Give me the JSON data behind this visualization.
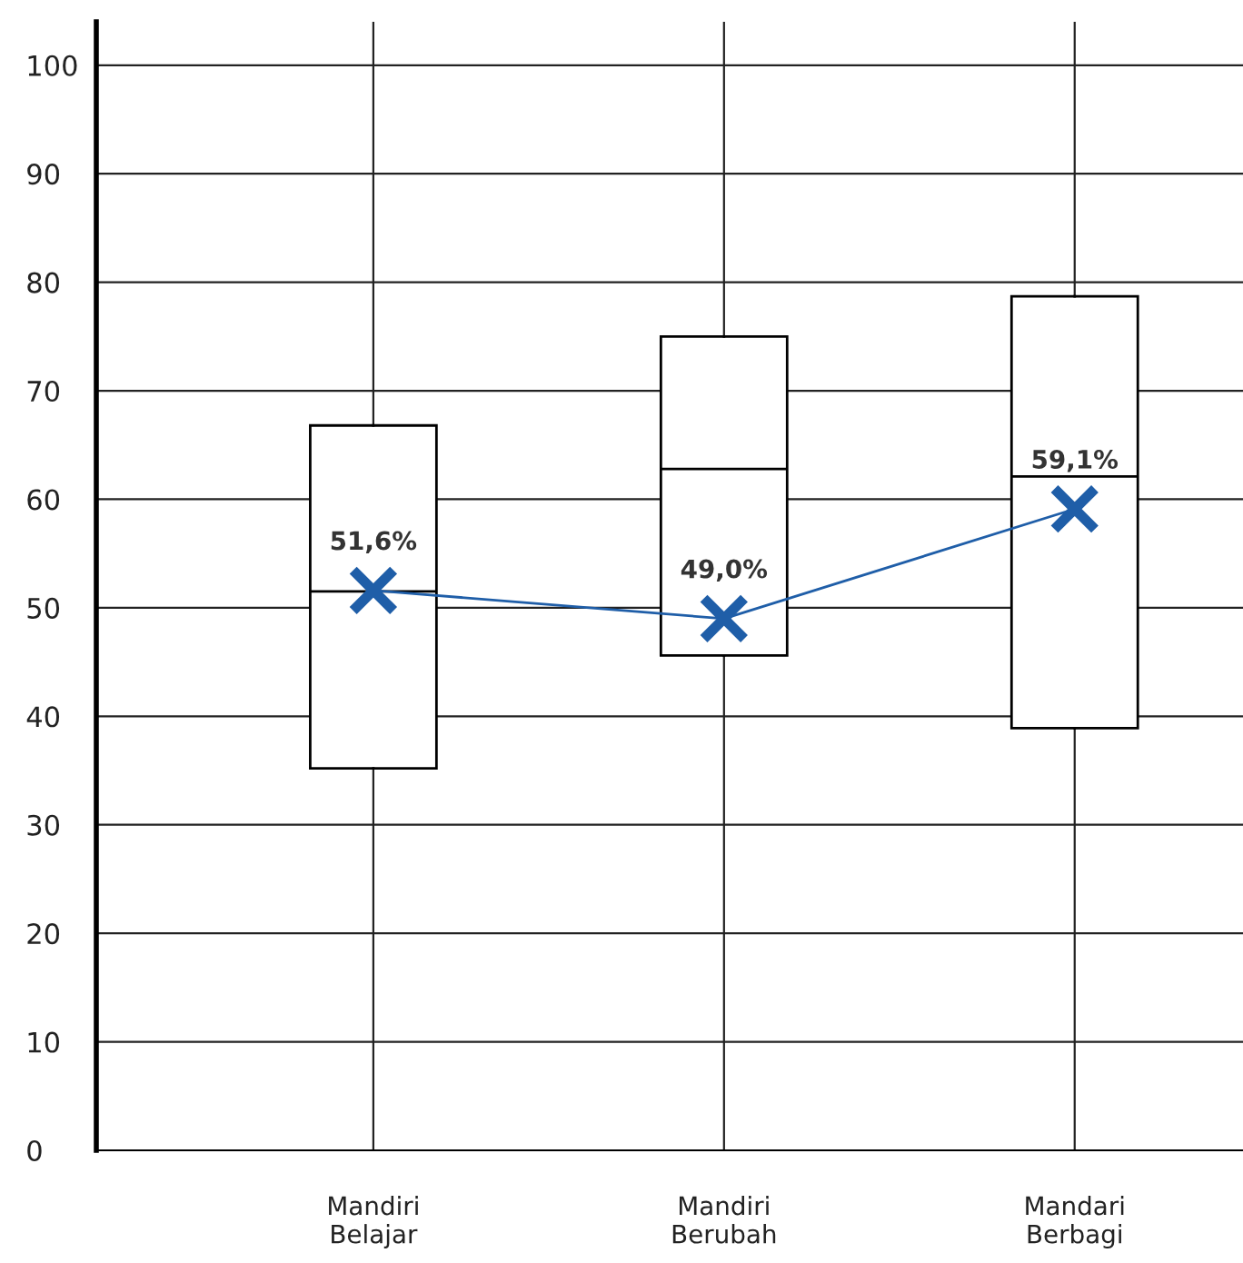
{
  "chart_data": {
    "type": "box",
    "categories": [
      "Mandiri\nBelajar",
      "Mandiri\nBerubah",
      "Mandari\nBerbagi"
    ],
    "boxes": [
      {
        "low": 35.2,
        "q1": 35.2,
        "median": 51.5,
        "q3": 66.8,
        "high": 66.8
      },
      {
        "low": 45.6,
        "q1": 45.6,
        "median": 62.8,
        "q3": 75.0,
        "high": 75.0
      },
      {
        "low": 38.9,
        "q1": 38.9,
        "median": 62.1,
        "q3": 78.7,
        "high": 78.7
      }
    ],
    "series": [
      {
        "type": "line",
        "color": "#1f5ea8",
        "values": [
          51.6,
          49.0,
          59.1
        ],
        "value_labels": [
          "51,6%",
          "49,0%",
          "59,1%"
        ],
        "marker": "cross"
      }
    ],
    "ylim": [
      0,
      104
    ],
    "yticks": [
      0,
      10,
      20,
      30,
      40,
      50,
      60,
      70,
      80,
      90,
      100
    ],
    "grid": true,
    "legend": false
  }
}
